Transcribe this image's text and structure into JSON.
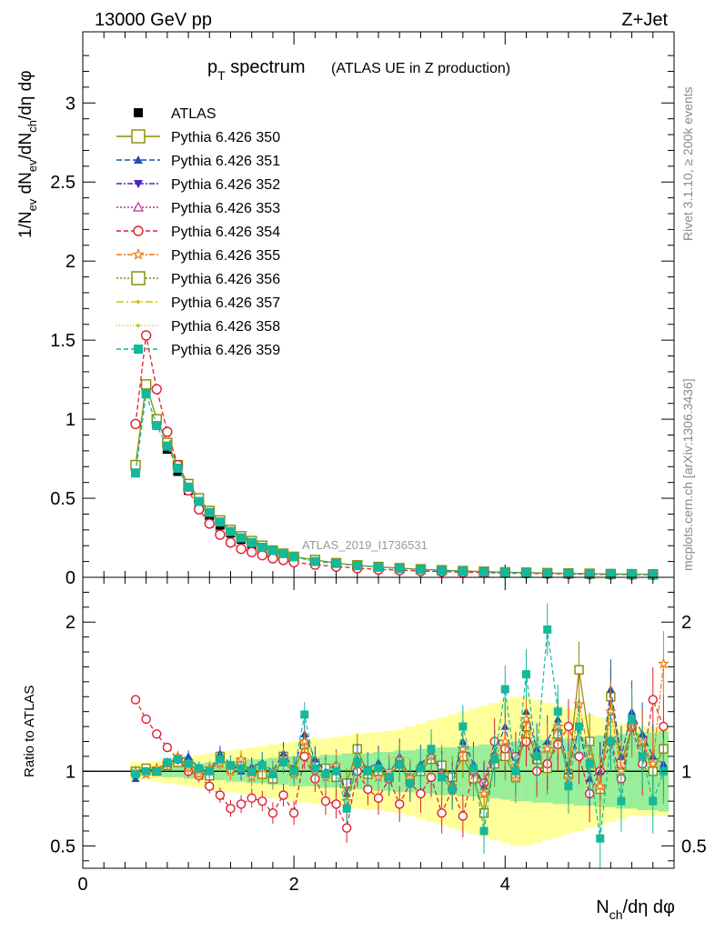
{
  "header": {
    "energy": "13000 GeV pp",
    "process": "Z+Jet",
    "title_main": "p",
    "title_sub": "T",
    "title_rest": " spectrum",
    "title_note": "(ATLAS UE in Z production)",
    "analysis_id": "ATLAS_2019_I1736531",
    "side_rivet": "Rivet 3.1.10, ≥ 200k events",
    "side_mcplots": "mcplots.cern.ch [arXiv:1306.3436]"
  },
  "axes": {
    "top_ylabel": "1/N_ev dN_ev/dN_ch/dη dφ",
    "bottom_ylabel": "Ratio to ATLAS",
    "xlabel": "N_ch/dη dφ",
    "top_ylim": [
      0,
      3.45
    ],
    "bottom_ylim": [
      0.35,
      2.3
    ],
    "xlim": [
      0,
      5.6
    ],
    "top_yticks": [
      "0",
      "0.5",
      "1",
      "1.5",
      "2",
      "2.5",
      "3"
    ],
    "bottom_yticks": [
      "0.5",
      "1",
      "2"
    ],
    "xticks": [
      "0",
      "2",
      "4"
    ]
  },
  "legend": [
    {
      "label": "ATLAS",
      "color": "#000000",
      "marker": "square-filled",
      "dash": "none"
    },
    {
      "label": "Pythia 6.426 350",
      "color": "#8b8b00",
      "marker": "square-open",
      "dash": "solid"
    },
    {
      "label": "Pythia 6.426 351",
      "color": "#1f4fb4",
      "marker": "triangle-up",
      "dash": "6,3"
    },
    {
      "label": "Pythia 6.426 352",
      "color": "#4b22c8",
      "marker": "triangle-down",
      "dash": "6,2,2,2"
    },
    {
      "label": "Pythia 6.426 353",
      "color": "#b0309a",
      "marker": "triangle-open",
      "dash": "2,2"
    },
    {
      "label": "Pythia 6.426 354",
      "color": "#dd1e2f",
      "marker": "circle-open",
      "dash": "5,3"
    },
    {
      "label": "Pythia 6.426 355",
      "color": "#ee7711",
      "marker": "star",
      "dash": "6,2,2,2"
    },
    {
      "label": "Pythia 6.426 356",
      "color": "#7c8c00",
      "marker": "square-open",
      "dash": "2,2"
    },
    {
      "label": "Pythia 6.426 357",
      "color": "#d4c400",
      "marker": "dot",
      "dash": "8,3,2,3"
    },
    {
      "label": "Pythia 6.426 358",
      "color": "#c2d21e",
      "marker": "dot",
      "dash": "1,2"
    },
    {
      "label": "Pythia 6.426 359",
      "color": "#14b89a",
      "marker": "square-filled",
      "dash": "5,3"
    }
  ],
  "chart_data": [
    {
      "type": "scatter",
      "panel": "main",
      "title": "pT spectrum (ATLAS UE in Z production)",
      "xlabel": "N_ch/dη dφ",
      "ylabel": "1/N_ev dN_ev/dN_ch/dη dφ",
      "ylim": [
        0,
        3.45
      ],
      "xlim": [
        0,
        5.6
      ],
      "x": [
        0.5,
        0.6,
        0.7,
        0.8,
        0.9,
        1.0,
        1.1,
        1.2,
        1.3,
        1.4,
        1.5,
        1.6,
        1.7,
        1.8,
        1.9,
        2.0,
        2.2,
        2.4,
        2.6,
        2.8,
        3.0,
        3.2,
        3.4,
        3.6,
        3.8,
        4.0,
        4.2,
        4.4,
        4.6,
        4.8,
        5.0,
        5.2,
        5.4
      ],
      "series": [
        {
          "name": "ATLAS",
          "values": [
            0.68,
            1.19,
            0.97,
            0.81,
            0.67,
            0.55,
            0.46,
            0.39,
            0.33,
            0.28,
            0.24,
            0.21,
            0.18,
            0.16,
            0.14,
            0.12,
            0.1,
            0.085,
            0.072,
            0.062,
            0.055,
            0.048,
            0.042,
            0.038,
            0.034,
            0.03,
            0.028,
            0.025,
            0.023,
            0.021,
            0.02,
            0.018,
            0.017
          ]
        },
        {
          "name": "Pythia 6.426 350",
          "values": [
            0.71,
            1.22,
            1.0,
            0.85,
            0.71,
            0.59,
            0.5,
            0.42,
            0.36,
            0.3,
            0.26,
            0.23,
            0.2,
            0.17,
            0.15,
            0.13,
            0.11,
            0.09,
            0.076,
            0.066,
            0.058,
            0.051,
            0.045,
            0.04,
            0.036,
            0.032,
            0.03,
            0.027,
            0.025,
            0.023,
            0.021,
            0.02,
            0.019
          ]
        },
        {
          "name": "Pythia 6.426 354",
          "values": [
            0.97,
            1.53,
            1.19,
            0.92,
            0.71,
            0.55,
            0.43,
            0.34,
            0.27,
            0.22,
            0.18,
            0.16,
            0.14,
            0.12,
            0.11,
            0.095,
            0.08,
            0.068,
            0.058,
            0.05,
            0.045,
            0.04,
            0.036,
            0.032,
            0.03,
            0.027,
            0.025,
            0.023,
            0.021,
            0.019,
            0.018,
            0.017,
            0.016
          ]
        },
        {
          "name": "Pythia 6.426 359",
          "values": [
            0.66,
            1.16,
            0.96,
            0.83,
            0.69,
            0.57,
            0.48,
            0.41,
            0.35,
            0.29,
            0.25,
            0.22,
            0.19,
            0.17,
            0.15,
            0.13,
            0.1,
            0.088,
            0.074,
            0.064,
            0.056,
            0.049,
            0.043,
            0.039,
            0.035,
            0.031,
            0.029,
            0.026,
            0.024,
            0.022,
            0.02,
            0.019,
            0.018
          ]
        }
      ]
    },
    {
      "type": "scatter",
      "panel": "ratio",
      "ylabel": "Ratio to ATLAS",
      "xlabel": "N_ch/dη dφ",
      "ylim": [
        0.35,
        2.3
      ],
      "xlim": [
        0,
        5.6
      ],
      "x": [
        0.5,
        0.6,
        0.7,
        0.8,
        0.9,
        1.0,
        1.1,
        1.2,
        1.3,
        1.4,
        1.5,
        1.6,
        1.7,
        1.8,
        1.9,
        2.0,
        2.1,
        2.2,
        2.3,
        2.4,
        2.5,
        2.6,
        2.7,
        2.8,
        2.9,
        3.0,
        3.1,
        3.2,
        3.3,
        3.4,
        3.5,
        3.6,
        3.7,
        3.8,
        3.9,
        4.0,
        4.1,
        4.2,
        4.3,
        4.4,
        4.5,
        4.6,
        4.7,
        4.8,
        4.9,
        5.0,
        5.1,
        5.2,
        5.3,
        5.4,
        5.5
      ],
      "band_green_halfwidth": [
        0.03,
        0.03,
        0.03,
        0.04,
        0.04,
        0.05,
        0.05,
        0.06,
        0.06,
        0.07,
        0.07,
        0.08,
        0.08,
        0.09,
        0.09,
        0.1,
        0.1,
        0.1,
        0.11,
        0.11,
        0.12,
        0.12,
        0.12,
        0.13,
        0.13,
        0.14,
        0.14,
        0.15,
        0.15,
        0.16,
        0.16,
        0.17,
        0.17,
        0.18,
        0.18,
        0.19,
        0.2,
        0.2,
        0.21,
        0.21,
        0.22,
        0.22,
        0.23,
        0.23,
        0.24,
        0.24,
        0.25,
        0.25,
        0.26,
        0.26,
        0.27
      ],
      "band_yellow_halfwidth": [
        0.06,
        0.06,
        0.07,
        0.08,
        0.09,
        0.1,
        0.11,
        0.12,
        0.13,
        0.14,
        0.15,
        0.16,
        0.17,
        0.18,
        0.19,
        0.2,
        0.21,
        0.22,
        0.22,
        0.23,
        0.24,
        0.25,
        0.26,
        0.26,
        0.27,
        0.28,
        0.3,
        0.32,
        0.34,
        0.36,
        0.38,
        0.4,
        0.42,
        0.44,
        0.46,
        0.48,
        0.5,
        0.5,
        0.48,
        0.46,
        0.44,
        0.42,
        0.4,
        0.38,
        0.36,
        0.34,
        0.32,
        0.3,
        0.3,
        0.3,
        0.3
      ],
      "series": [
        {
          "name": "Pythia 6.426 350",
          "values": [
            1.0,
            1.02,
            1.0,
            1.04,
            1.06,
            1.05,
            1.0,
            0.97,
            1.1,
            1.02,
            1.06,
            1.0,
            0.98,
            0.95,
            1.1,
            1.0,
            1.18,
            1.05,
            1.02,
            0.96,
            0.92,
            1.15,
            0.98,
            1.0,
            0.96,
            1.05,
            0.94,
            1.0,
            1.08,
            1.04,
            0.96,
            1.1,
            0.95,
            0.72,
            1.05,
            1.1,
            0.96,
            1.3,
            1.08,
            1.02,
            1.25,
            0.98,
            1.68,
            1.2,
            0.88,
            1.5,
            1.05,
            1.3,
            1.2,
            1.0,
            1.15
          ]
        },
        {
          "name": "Pythia 6.426 354",
          "values": [
            1.48,
            1.35,
            1.25,
            1.16,
            1.08,
            1.0,
            0.97,
            0.9,
            0.84,
            0.75,
            0.78,
            0.82,
            0.8,
            0.72,
            0.84,
            0.72,
            1.1,
            0.95,
            0.8,
            0.78,
            0.62,
            1.0,
            0.88,
            0.82,
            0.95,
            0.78,
            0.92,
            0.85,
            0.96,
            0.72,
            0.88,
            0.7,
            1.0,
            0.92,
            1.2,
            1.15,
            1.1,
            1.2,
            1.0,
            1.05,
            1.18,
            1.3,
            1.1,
            0.85,
            1.0,
            1.2,
            0.95,
            1.3,
            1.05,
            1.48,
            1.3
          ]
        },
        {
          "name": "Pythia 6.426 351",
          "values": [
            0.95,
            1.0,
            1.02,
            1.05,
            1.08,
            1.1,
            1.02,
            1.0,
            1.12,
            1.05,
            1.0,
            1.03,
            1.06,
            1.0,
            1.12,
            1.02,
            1.25,
            1.08,
            1.0,
            1.05,
            0.85,
            1.08,
            1.02,
            1.06,
            0.98,
            1.1,
            0.95,
            1.05,
            1.12,
            1.0,
            0.92,
            1.2,
            1.05,
            0.9,
            1.12,
            1.3,
            1.0,
            1.4,
            1.15,
            1.2,
            1.35,
            1.0,
            1.3,
            0.95,
            1.0,
            1.55,
            1.1,
            1.4,
            1.25,
            1.1,
            1.05
          ]
        },
        {
          "name": "Pythia 6.426 355",
          "values": [
            1.0,
            0.98,
            1.02,
            1.05,
            1.1,
            1.02,
            0.98,
            1.02,
            1.05,
            1.0,
            1.08,
            0.96,
            1.02,
            1.0,
            1.08,
            0.98,
            1.2,
            1.0,
            0.96,
            1.04,
            0.8,
            1.05,
            1.0,
            0.96,
            1.0,
            1.08,
            0.96,
            1.02,
            1.1,
            0.98,
            0.9,
            1.15,
            1.0,
            0.85,
            1.1,
            1.2,
            0.95,
            1.35,
            1.1,
            1.15,
            1.3,
            0.95,
            1.45,
            1.1,
            0.9,
            1.4,
            1.0,
            1.3,
            1.2,
            1.05,
            1.72
          ]
        },
        {
          "name": "Pythia 6.426 359",
          "values": [
            0.98,
            1.0,
            1.0,
            1.06,
            1.08,
            1.05,
            1.02,
            1.0,
            1.08,
            1.04,
            1.02,
            1.0,
            1.04,
            0.98,
            1.06,
            1.0,
            1.38,
            1.02,
            0.98,
            1.0,
            0.75,
            1.06,
            1.0,
            1.02,
            0.96,
            1.05,
            0.92,
            1.02,
            1.15,
            0.96,
            0.88,
            1.3,
            1.02,
            0.6,
            1.08,
            1.55,
            1.0,
            1.65,
            1.1,
            1.95,
            1.4,
            0.9,
            1.3,
            1.05,
            0.55,
            1.2,
            0.8,
            1.35,
            1.1,
            0.8,
            1.0
          ]
        }
      ]
    }
  ]
}
